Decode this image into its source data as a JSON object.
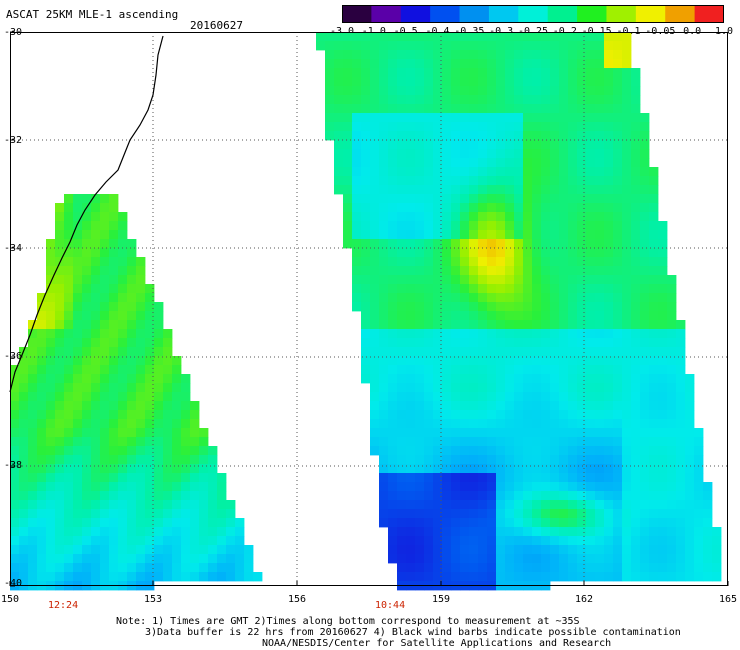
{
  "header": {
    "title": "ASCAT 25KM MLE-1 ascending",
    "date": "20160627"
  },
  "colorbar": {
    "labels": [
      "-3.0",
      "-1.0",
      "-0.5",
      "-0.4",
      "-0.35",
      "-0.3",
      "-0.25",
      "-0.2",
      "-0.15",
      "-0.1",
      "-0.05",
      "0.0",
      "1.0"
    ],
    "colors": [
      "#2a0040",
      "#5a00a8",
      "#1010e0",
      "#0050f0",
      "#0090f0",
      "#00c8f0",
      "#00f0d8",
      "#00f090",
      "#20f020",
      "#a0f000",
      "#f0f000",
      "#f0a000",
      "#f02020"
    ]
  },
  "map": {
    "lat_labels": [
      "-30",
      "-32",
      "-34",
      "-36",
      "-38",
      "-40"
    ],
    "lon_labels": [
      "150",
      "153",
      "156",
      "159",
      "162",
      "165"
    ],
    "pass_times": [
      "12:24",
      "10:44"
    ],
    "coast_color": "#000000"
  },
  "notes": {
    "line1": "Note: 1) Times are GMT 2)Times along bottom correspond to measurement at ~35S",
    "line2": "3)Data buffer is 22 hrs from 20160627 4) Black wind barbs indicate possible contamination",
    "line3": "NOAA/NESDIS/Center for Satellite Applications and Research"
  }
}
